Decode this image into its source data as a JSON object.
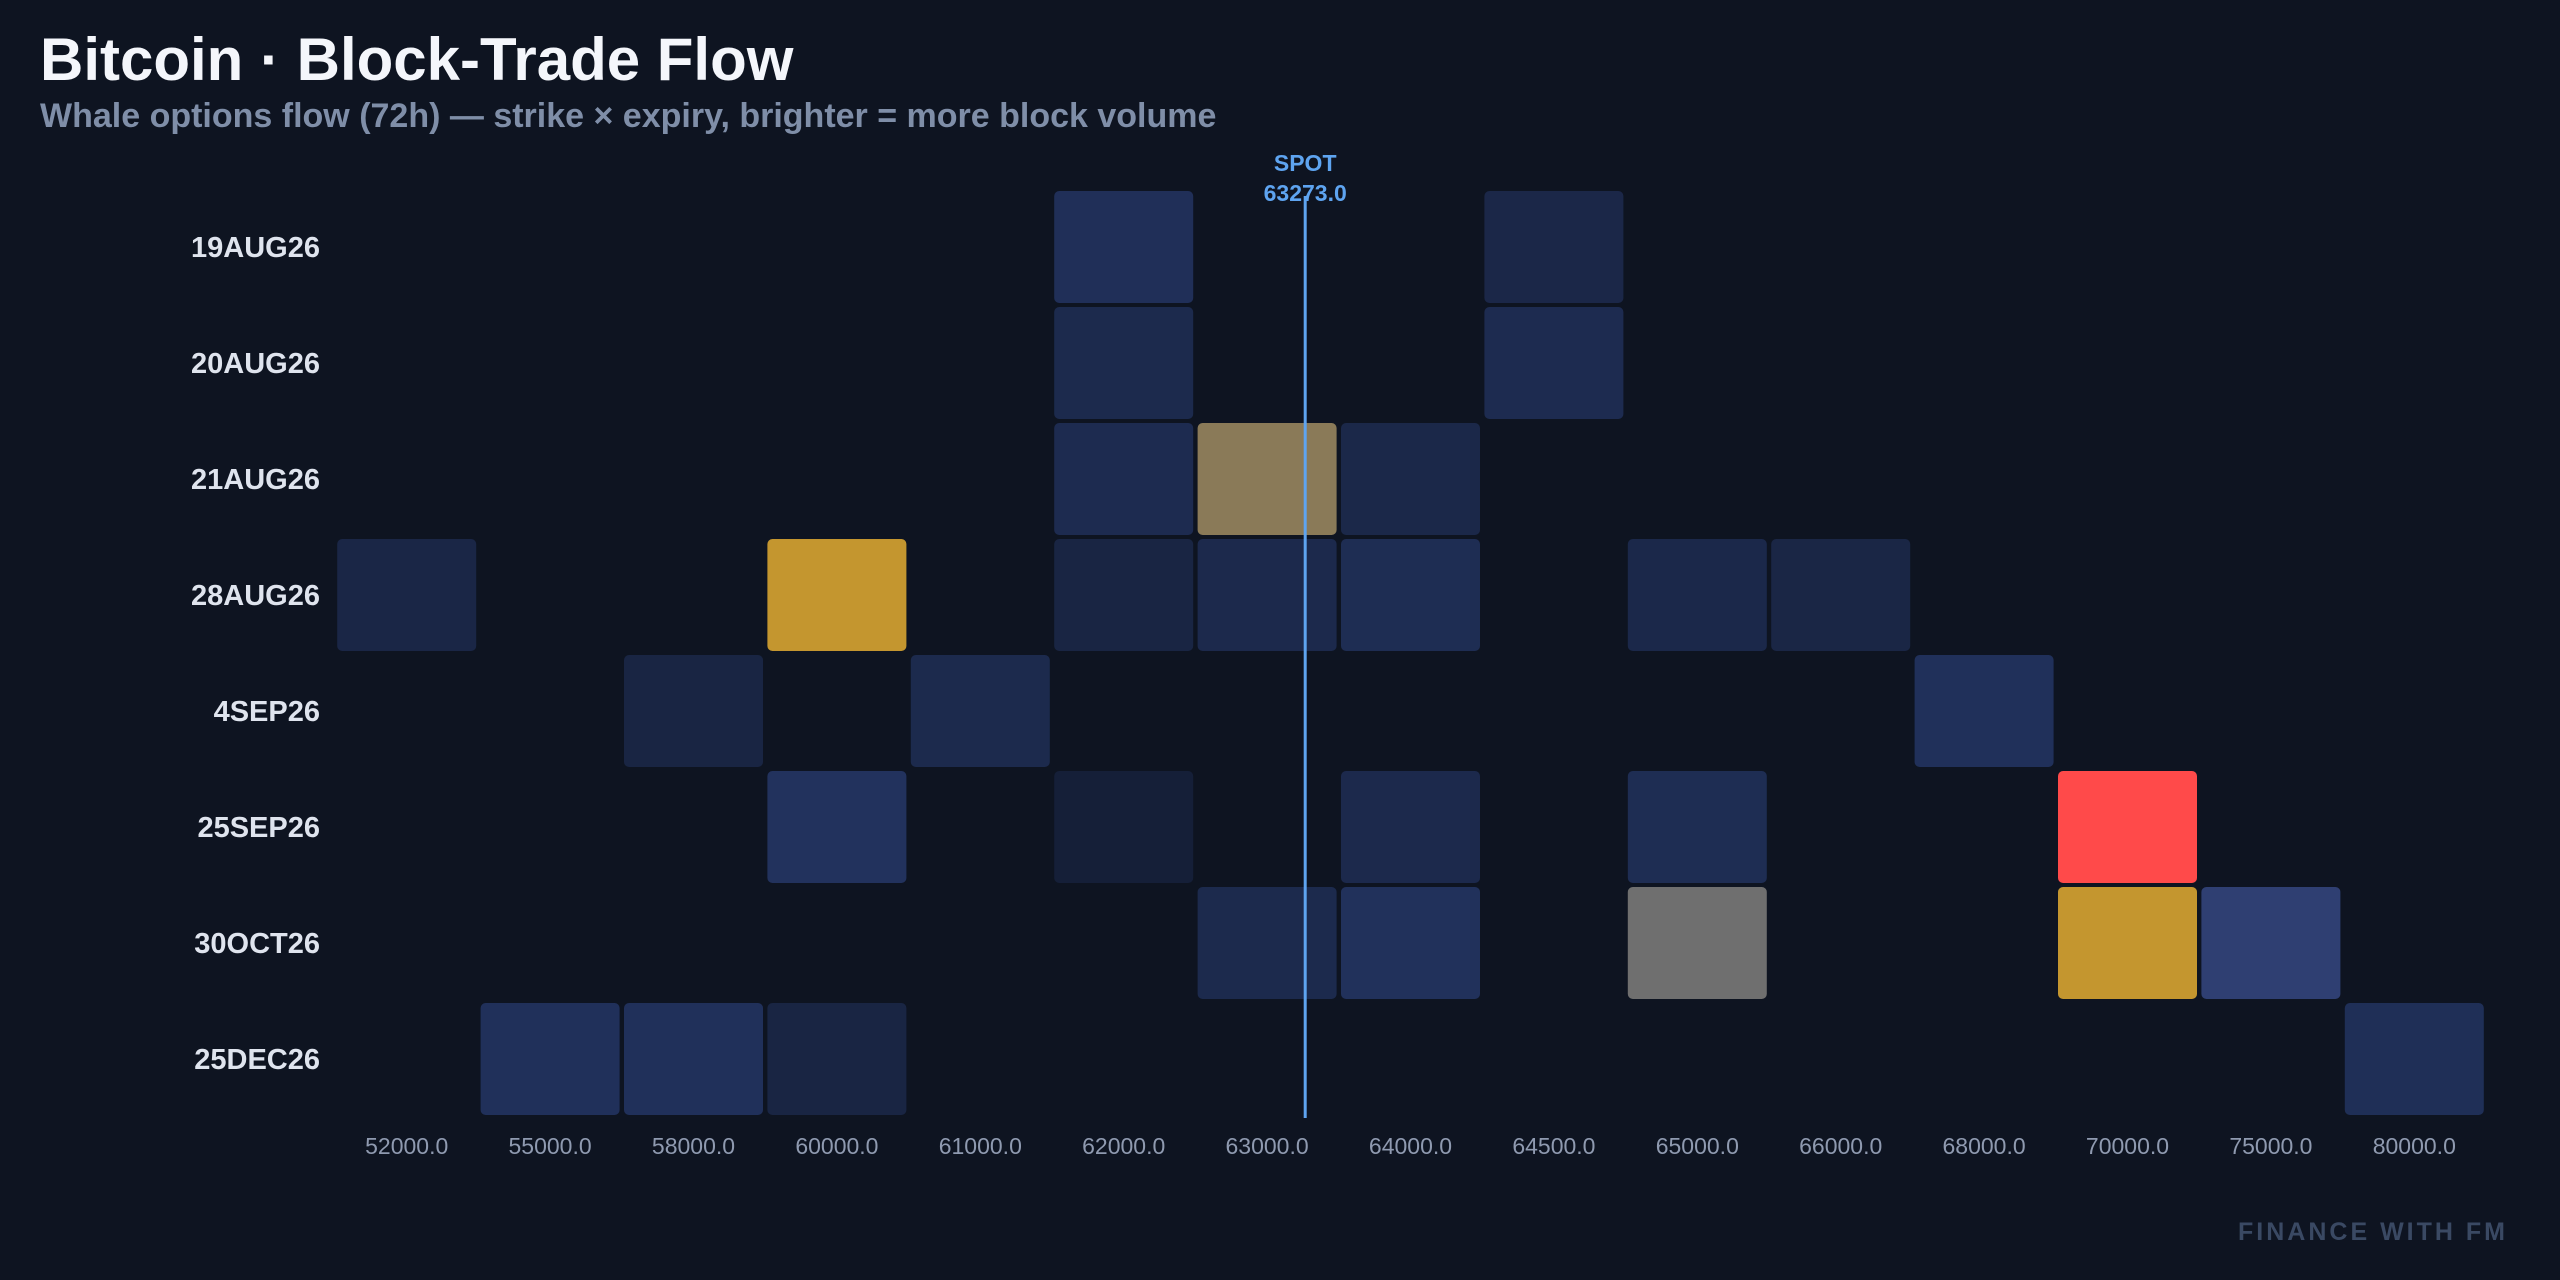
{
  "title": "Bitcoin · Block-Trade Flow",
  "subtitle": "Whale options flow (72h) — strike × expiry, brighter = more block volume",
  "watermark": "FINANCE WITH FM",
  "colors": {
    "background": "#0e1421",
    "spot_line": "#4a90e2",
    "spot_label": "#5ea4f0",
    "cell_base": "#1a2950",
    "high_gold": "#c4962f",
    "high_tan": "#8a7a58",
    "high_grey": "#6f6f6f",
    "high_red": "#ff4a4a",
    "mid_blue": "#2f3f72"
  },
  "chart_data": {
    "type": "heatmap",
    "title": "Bitcoin · Block-Trade Flow",
    "subtitle": "Whale options flow (72h) — strike × expiry, brighter = more block volume",
    "x_categories": [
      "52000.0",
      "55000.0",
      "58000.0",
      "60000.0",
      "61000.0",
      "62000.0",
      "63000.0",
      "64000.0",
      "64500.0",
      "65000.0",
      "66000.0",
      "68000.0",
      "70000.0",
      "75000.0",
      "80000.0"
    ],
    "y_categories": [
      "19AUG26",
      "20AUG26",
      "21AUG26",
      "28AUG26",
      "4SEP26",
      "25SEP26",
      "30OCT26",
      "25DEC26"
    ],
    "spot": {
      "label": "SPOT",
      "value": "63273.0",
      "strike": 63273.0
    },
    "cells": [
      {
        "expiry": "19AUG26",
        "strike": "62000.0",
        "intensity": 0.78
      },
      {
        "expiry": "19AUG26",
        "strike": "64500.0",
        "intensity": 0.55
      },
      {
        "expiry": "20AUG26",
        "strike": "62000.0",
        "intensity": 0.62
      },
      {
        "expiry": "20AUG26",
        "strike": "64500.0",
        "intensity": 0.66
      },
      {
        "expiry": "21AUG26",
        "strike": "62000.0",
        "intensity": 0.66
      },
      {
        "expiry": "21AUG26",
        "strike": "63000.0",
        "color": "#8a7a58"
      },
      {
        "expiry": "21AUG26",
        "strike": "64000.0",
        "intensity": 0.57
      },
      {
        "expiry": "28AUG26",
        "strike": "52000.0",
        "intensity": 0.52
      },
      {
        "expiry": "28AUG26",
        "strike": "60000.0",
        "color": "#c4962f"
      },
      {
        "expiry": "28AUG26",
        "strike": "62000.0",
        "intensity": 0.48
      },
      {
        "expiry": "28AUG26",
        "strike": "63000.0",
        "intensity": 0.6
      },
      {
        "expiry": "28AUG26",
        "strike": "64000.0",
        "intensity": 0.7
      },
      {
        "expiry": "28AUG26",
        "strike": "65000.0",
        "intensity": 0.58
      },
      {
        "expiry": "28AUG26",
        "strike": "66000.0",
        "intensity": 0.5
      },
      {
        "expiry": "4SEP26",
        "strike": "58000.0",
        "intensity": 0.48
      },
      {
        "expiry": "4SEP26",
        "strike": "61000.0",
        "intensity": 0.62
      },
      {
        "expiry": "4SEP26",
        "strike": "68000.0",
        "intensity": 0.8
      },
      {
        "expiry": "25SEP26",
        "strike": "60000.0",
        "intensity": 0.85
      },
      {
        "expiry": "25SEP26",
        "strike": "62000.0",
        "intensity": 0.32
      },
      {
        "expiry": "25SEP26",
        "strike": "64000.0",
        "intensity": 0.6
      },
      {
        "expiry": "25SEP26",
        "strike": "65000.0",
        "intensity": 0.7
      },
      {
        "expiry": "25SEP26",
        "strike": "70000.0",
        "color": "#ff4a4a"
      },
      {
        "expiry": "30OCT26",
        "strike": "63000.0",
        "intensity": 0.62
      },
      {
        "expiry": "30OCT26",
        "strike": "64000.0",
        "intensity": 0.82
      },
      {
        "expiry": "30OCT26",
        "strike": "65000.0",
        "color": "#6f6f6f"
      },
      {
        "expiry": "30OCT26",
        "strike": "70000.0",
        "color": "#c4962f"
      },
      {
        "expiry": "30OCT26",
        "strike": "75000.0",
        "color": "#2f3f72"
      },
      {
        "expiry": "25DEC26",
        "strike": "55000.0",
        "intensity": 0.8
      },
      {
        "expiry": "25DEC26",
        "strike": "58000.0",
        "intensity": 0.8
      },
      {
        "expiry": "25DEC26",
        "strike": "60000.0",
        "intensity": 0.48
      },
      {
        "expiry": "25DEC26",
        "strike": "80000.0",
        "intensity": 0.76
      }
    ],
    "legend": "none",
    "grid": false
  }
}
